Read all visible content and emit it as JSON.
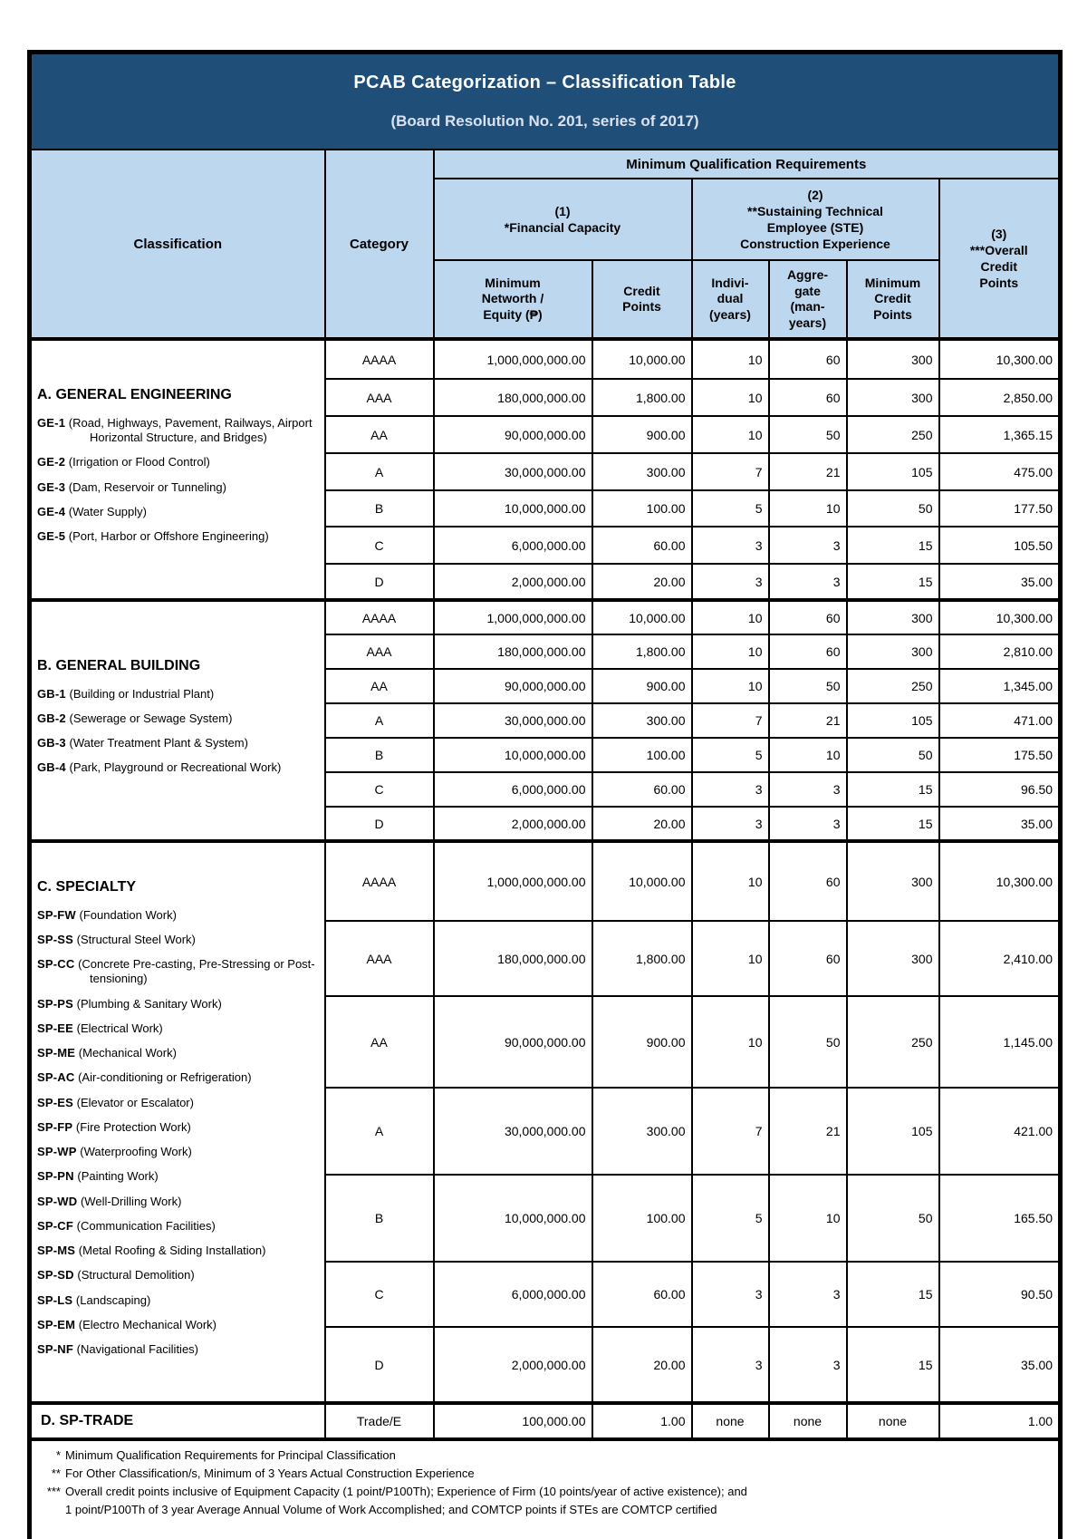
{
  "title": {
    "main": "PCAB Categorization – Classification Table",
    "sub": "(Board Resolution No. 201, series of 2017)"
  },
  "header": {
    "classification": "Classification",
    "category": "Category",
    "mqr": "Minimum Qualification Requirements",
    "financial": "(1)\n*Financial Capacity",
    "ste": "(2)\n**Sustaining Technical\nEmployee (STE)\nConstruction Experience",
    "overall": "(3)\n***Overall\nCredit\nPoints",
    "networth": "Minimum\nNetworth /\nEquity (₱)",
    "credit_points": "Credit\nPoints",
    "individual": "Indivi-\ndual\n(years)",
    "aggregate": "Aggre-\ngate\n(man-\nyears)",
    "min_credit": "Minimum\nCredit\nPoints"
  },
  "sections": [
    {
      "title": "A. GENERAL ENGINEERING",
      "items": [
        {
          "code": "GE-1",
          "desc": "(Road, Highways, Pavement, Railways, Airport Horizontal Structure, and Bridges)"
        },
        {
          "code": "GE-2",
          "desc": "(Irrigation or Flood Control)"
        },
        {
          "code": "GE-3",
          "desc": "(Dam, Reservoir or Tunneling)"
        },
        {
          "code": "GE-4",
          "desc": "(Water Supply)"
        },
        {
          "code": "GE-5",
          "desc": "(Port, Harbor or Offshore Engineering)"
        }
      ],
      "rows": [
        {
          "category": "AAAA",
          "networth": "1,000,000,000.00",
          "credit": "10,000.00",
          "individual": "10",
          "aggregate": "60",
          "min_credit": "300",
          "overall": "10,300.00"
        },
        {
          "category": "AAA",
          "networth": "180,000,000.00",
          "credit": "1,800.00",
          "individual": "10",
          "aggregate": "60",
          "min_credit": "300",
          "overall": "2,850.00"
        },
        {
          "category": "AA",
          "networth": "90,000,000.00",
          "credit": "900.00",
          "individual": "10",
          "aggregate": "50",
          "min_credit": "250",
          "overall": "1,365.15"
        },
        {
          "category": "A",
          "networth": "30,000,000.00",
          "credit": "300.00",
          "individual": "7",
          "aggregate": "21",
          "min_credit": "105",
          "overall": "475.00"
        },
        {
          "category": "B",
          "networth": "10,000,000.00",
          "credit": "100.00",
          "individual": "5",
          "aggregate": "10",
          "min_credit": "50",
          "overall": "177.50"
        },
        {
          "category": "C",
          "networth": "6,000,000.00",
          "credit": "60.00",
          "individual": "3",
          "aggregate": "3",
          "min_credit": "15",
          "overall": "105.50"
        },
        {
          "category": "D",
          "networth": "2,000,000.00",
          "credit": "20.00",
          "individual": "3",
          "aggregate": "3",
          "min_credit": "15",
          "overall": "35.00"
        }
      ]
    },
    {
      "title": "B. GENERAL BUILDING",
      "items": [
        {
          "code": "GB-1",
          "desc": "(Building or Industrial Plant)"
        },
        {
          "code": "GB-2",
          "desc": "(Sewerage or Sewage System)"
        },
        {
          "code": "GB-3",
          "desc": "(Water Treatment Plant & System)"
        },
        {
          "code": "GB-4",
          "desc": "(Park, Playground or Recreational Work)"
        }
      ],
      "rows": [
        {
          "category": "AAAA",
          "networth": "1,000,000,000.00",
          "credit": "10,000.00",
          "individual": "10",
          "aggregate": "60",
          "min_credit": "300",
          "overall": "10,300.00"
        },
        {
          "category": "AAA",
          "networth": "180,000,000.00",
          "credit": "1,800.00",
          "individual": "10",
          "aggregate": "60",
          "min_credit": "300",
          "overall": "2,810.00"
        },
        {
          "category": "AA",
          "networth": "90,000,000.00",
          "credit": "900.00",
          "individual": "10",
          "aggregate": "50",
          "min_credit": "250",
          "overall": "1,345.00"
        },
        {
          "category": "A",
          "networth": "30,000,000.00",
          "credit": "300.00",
          "individual": "7",
          "aggregate": "21",
          "min_credit": "105",
          "overall": "471.00"
        },
        {
          "category": "B",
          "networth": "10,000,000.00",
          "credit": "100.00",
          "individual": "5",
          "aggregate": "10",
          "min_credit": "50",
          "overall": "175.50"
        },
        {
          "category": "C",
          "networth": "6,000,000.00",
          "credit": "60.00",
          "individual": "3",
          "aggregate": "3",
          "min_credit": "15",
          "overall": "96.50"
        },
        {
          "category": "D",
          "networth": "2,000,000.00",
          "credit": "20.00",
          "individual": "3",
          "aggregate": "3",
          "min_credit": "15",
          "overall": "35.00"
        }
      ]
    },
    {
      "title": "C. SPECIALTY",
      "items": [
        {
          "code": "SP-FW",
          "desc": "(Foundation Work)"
        },
        {
          "code": "SP-SS",
          "desc": "(Structural Steel Work)"
        },
        {
          "code": "SP-CC",
          "desc": "(Concrete Pre-casting, Pre-Stressing or Post-tensioning)"
        },
        {
          "code": "SP-PS",
          "desc": "(Plumbing & Sanitary Work)"
        },
        {
          "code": "SP-EE",
          "desc": "(Electrical Work)"
        },
        {
          "code": "SP-ME",
          "desc": "(Mechanical Work)"
        },
        {
          "code": "SP-AC",
          "desc": "(Air-conditioning or Refrigeration)"
        },
        {
          "code": "SP-ES",
          "desc": "(Elevator or Escalator)"
        },
        {
          "code": "SP-FP",
          "desc": "(Fire Protection Work)"
        },
        {
          "code": "SP-WP",
          "desc": "(Waterproofing Work)"
        },
        {
          "code": "SP-PN",
          "desc": "(Painting Work)"
        },
        {
          "code": "SP-WD",
          "desc": "(Well-Drilling Work)"
        },
        {
          "code": "SP-CF",
          "desc": "(Communication Facilities)"
        },
        {
          "code": "SP-MS",
          "desc": "(Metal Roofing & Siding Installation)"
        },
        {
          "code": "SP-SD",
          "desc": "(Structural Demolition)"
        },
        {
          "code": "SP-LS",
          "desc": "(Landscaping)"
        },
        {
          "code": "SP-EM",
          "desc": "(Electro Mechanical Work)"
        },
        {
          "code": "SP-NF",
          "desc": "(Navigational Facilities)"
        }
      ],
      "rows": [
        {
          "category": "AAAA",
          "networth": "1,000,000,000.00",
          "credit": "10,000.00",
          "individual": "10",
          "aggregate": "60",
          "min_credit": "300",
          "overall": "10,300.00"
        },
        {
          "category": "AAA",
          "networth": "180,000,000.00",
          "credit": "1,800.00",
          "individual": "10",
          "aggregate": "60",
          "min_credit": "300",
          "overall": "2,410.00"
        },
        {
          "category": "AA",
          "networth": "90,000,000.00",
          "credit": "900.00",
          "individual": "10",
          "aggregate": "50",
          "min_credit": "250",
          "overall": "1,145.00"
        },
        {
          "category": "A",
          "networth": "30,000,000.00",
          "credit": "300.00",
          "individual": "7",
          "aggregate": "21",
          "min_credit": "105",
          "overall": "421.00"
        },
        {
          "category": "B",
          "networth": "10,000,000.00",
          "credit": "100.00",
          "individual": "5",
          "aggregate": "10",
          "min_credit": "50",
          "overall": "165.50"
        },
        {
          "category": "C",
          "networth": "6,000,000.00",
          "credit": "60.00",
          "individual": "3",
          "aggregate": "3",
          "min_credit": "15",
          "overall": "90.50"
        },
        {
          "category": "D",
          "networth": "2,000,000.00",
          "credit": "20.00",
          "individual": "3",
          "aggregate": "3",
          "min_credit": "15",
          "overall": "35.00"
        }
      ]
    },
    {
      "title": "D. SP-TRADE",
      "items": [],
      "rows": [
        {
          "category": "Trade/E",
          "networth": "100,000.00",
          "credit": "1.00",
          "individual": "none",
          "aggregate": "none",
          "min_credit": "none",
          "overall": "1.00"
        }
      ]
    }
  ],
  "footnotes": [
    {
      "marker": "*",
      "text": "Minimum Qualification Requirements for Principal Classification"
    },
    {
      "marker": "**",
      "text": "For Other Classification/s, Minimum of 3 Years Actual Construction Experience"
    },
    {
      "marker": "***",
      "text": "Overall credit points inclusive of Equipment Capacity (1 point/P100Th); Experience of Firm (10 points/year of active existence); and\n1 point/P100Th of 3 year Average Annual Volume of Work Accomplished; and COMTCP points if STEs are COMTCP certified"
    }
  ],
  "colors": {
    "title_bar": "#1F4E79",
    "title_text": "#FFFFFF",
    "subtitle_text": "#D9E2F0",
    "header_fill": "#BDD7EE",
    "border": "#000000",
    "body_fill": "#FFFFFF"
  }
}
